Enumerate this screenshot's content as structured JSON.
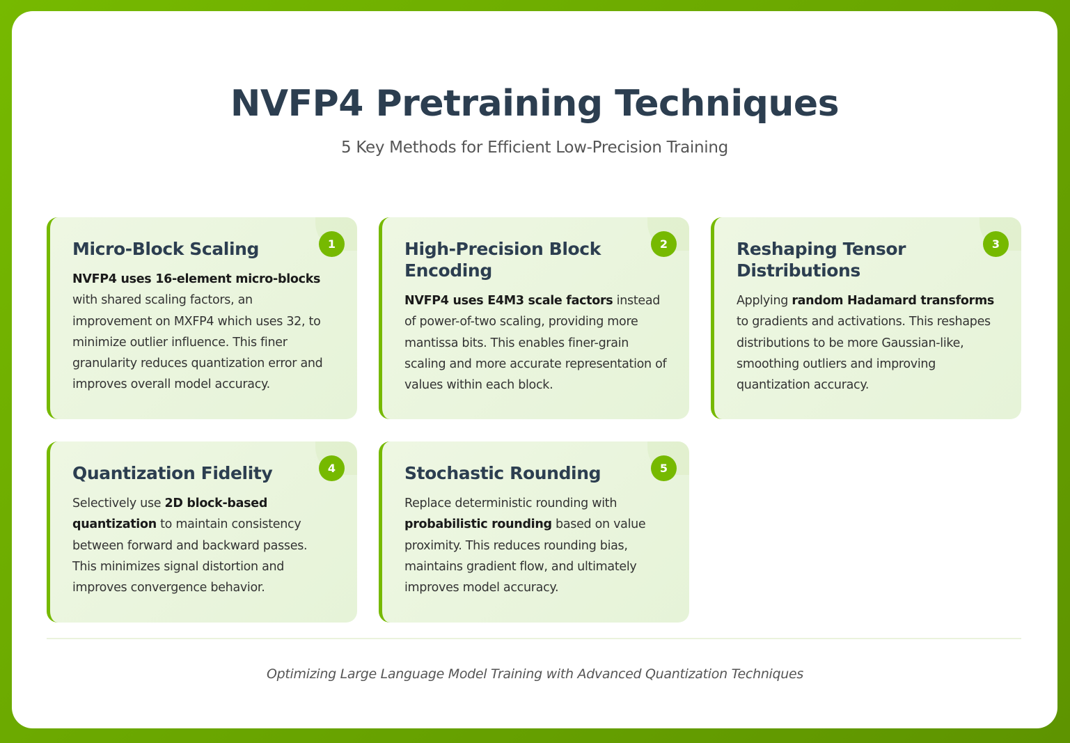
{
  "header": {
    "title": "NVFP4 Pretraining Techniques",
    "subtitle": "5 Key Methods for Efficient Low-Precision Training"
  },
  "colors": {
    "accent": "#76b900",
    "title": "#2c3e50"
  },
  "cards": [
    {
      "number": "1",
      "title": "Micro-Block Scaling",
      "pre": "",
      "bold": "NVFP4 uses 16-element micro-blocks",
      "post": " with shared scaling factors, an improvement on MXFP4 which uses 32, to minimize outlier influence. This finer granularity reduces quantization error and improves overall model accuracy."
    },
    {
      "number": "2",
      "title": "High-Precision Block Encoding",
      "pre": "",
      "bold": "NVFP4 uses E4M3 scale factors",
      "post": " instead of power-of-two scaling, providing more mantissa bits. This enables finer-grain scaling and more accurate representation of values within each block."
    },
    {
      "number": "3",
      "title": "Reshaping Tensor Distributions",
      "pre": "Applying ",
      "bold": "random Hadamard transforms",
      "post": " to gradients and activations. This reshapes distributions to be more Gaussian-like, smoothing outliers and improving quantization accuracy."
    },
    {
      "number": "4",
      "title": "Quantization Fidelity",
      "pre": "Selectively use ",
      "bold": "2D block-based quantization",
      "post": " to maintain consistency between forward and backward passes. This minimizes signal distortion and improves convergence behavior."
    },
    {
      "number": "5",
      "title": "Stochastic Rounding",
      "pre": "Replace deterministic rounding with ",
      "bold": "probabilistic rounding",
      "post": " based on value proximity. This reduces rounding bias, maintains gradient flow, and ultimately improves model accuracy."
    }
  ],
  "footer": {
    "text": "Optimizing Large Language Model Training with Advanced Quantization Techniques"
  }
}
